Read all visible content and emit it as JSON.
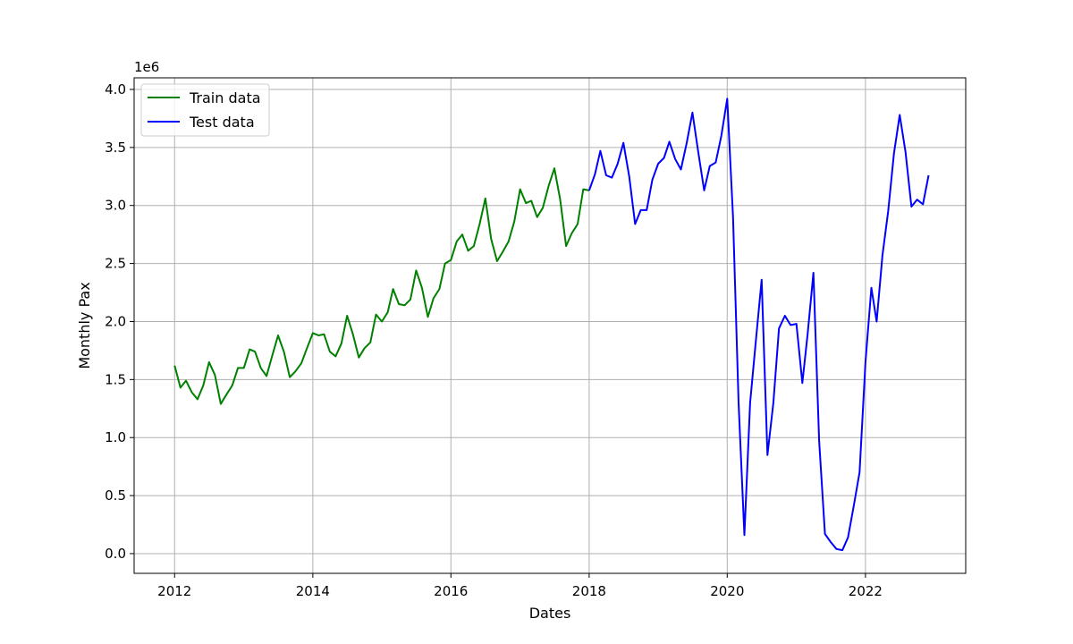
{
  "chart_data": {
    "type": "line",
    "title": "",
    "xlabel": "Dates",
    "ylabel": "Monthly Pax",
    "y_offset_text": "1e6",
    "y_scale_factor": 1000000,
    "xlim": [
      "2011-06-01",
      "2023-06-15"
    ],
    "ylim": [
      -0.17,
      4.1
    ],
    "x_ticks": [
      {
        "date": "2012-01-01",
        "label": "2012"
      },
      {
        "date": "2014-01-01",
        "label": "2014"
      },
      {
        "date": "2016-01-01",
        "label": "2016"
      },
      {
        "date": "2018-01-01",
        "label": "2018"
      },
      {
        "date": "2020-01-01",
        "label": "2020"
      },
      {
        "date": "2022-01-01",
        "label": "2022"
      }
    ],
    "y_ticks": [
      {
        "value": 0.0,
        "label": "0.0"
      },
      {
        "value": 0.5,
        "label": "0.5"
      },
      {
        "value": 1.0,
        "label": "1.0"
      },
      {
        "value": 1.5,
        "label": "1.5"
      },
      {
        "value": 2.0,
        "label": "2.0"
      },
      {
        "value": 2.5,
        "label": "2.5"
      },
      {
        "value": 3.0,
        "label": "3.0"
      },
      {
        "value": 3.5,
        "label": "3.5"
      },
      {
        "value": 4.0,
        "label": "4.0"
      }
    ],
    "grid": true,
    "legend_position": "upper-left",
    "series": [
      {
        "name": "Train data",
        "color": "#008000",
        "x": [
          "2012-01",
          "2012-02",
          "2012-03",
          "2012-04",
          "2012-05",
          "2012-06",
          "2012-07",
          "2012-08",
          "2012-09",
          "2012-10",
          "2012-11",
          "2012-12",
          "2013-01",
          "2013-02",
          "2013-03",
          "2013-04",
          "2013-05",
          "2013-06",
          "2013-07",
          "2013-08",
          "2013-09",
          "2013-10",
          "2013-11",
          "2013-12",
          "2014-01",
          "2014-02",
          "2014-03",
          "2014-04",
          "2014-05",
          "2014-06",
          "2014-07",
          "2014-08",
          "2014-09",
          "2014-10",
          "2014-11",
          "2014-12",
          "2015-01",
          "2015-02",
          "2015-03",
          "2015-04",
          "2015-05",
          "2015-06",
          "2015-07",
          "2015-08",
          "2015-09",
          "2015-10",
          "2015-11",
          "2015-12",
          "2016-01",
          "2016-02",
          "2016-03",
          "2016-04",
          "2016-05",
          "2016-06",
          "2016-07",
          "2016-08",
          "2016-09",
          "2016-10",
          "2016-11",
          "2016-12",
          "2017-01",
          "2017-02",
          "2017-03",
          "2017-04",
          "2017-05",
          "2017-06",
          "2017-07",
          "2017-08",
          "2017-09",
          "2017-10",
          "2017-11",
          "2017-12",
          "2018-01"
        ],
        "values": [
          1.62,
          1.43,
          1.49,
          1.39,
          1.33,
          1.45,
          1.65,
          1.54,
          1.29,
          1.37,
          1.45,
          1.6,
          1.6,
          1.76,
          1.74,
          1.6,
          1.53,
          1.71,
          1.88,
          1.74,
          1.52,
          1.57,
          1.64,
          1.77,
          1.9,
          1.88,
          1.89,
          1.74,
          1.7,
          1.81,
          2.05,
          1.89,
          1.69,
          1.77,
          1.82,
          2.06,
          2.0,
          2.08,
          2.28,
          2.15,
          2.14,
          2.19,
          2.44,
          2.29,
          2.04,
          2.2,
          2.28,
          2.5,
          2.53,
          2.69,
          2.75,
          2.61,
          2.65,
          2.84,
          3.06,
          2.71,
          2.52,
          2.6,
          2.69,
          2.86,
          3.14,
          3.02,
          3.04,
          2.9,
          2.98,
          3.17,
          3.32,
          3.05,
          2.65,
          2.76,
          2.84,
          3.14,
          3.13
        ]
      },
      {
        "name": "Test data",
        "color": "#0000ff",
        "x": [
          "2018-01",
          "2018-02",
          "2018-03",
          "2018-04",
          "2018-05",
          "2018-06",
          "2018-07",
          "2018-08",
          "2018-09",
          "2018-10",
          "2018-11",
          "2018-12",
          "2019-01",
          "2019-02",
          "2019-03",
          "2019-04",
          "2019-05",
          "2019-06",
          "2019-07",
          "2019-08",
          "2019-09",
          "2019-10",
          "2019-11",
          "2019-12",
          "2020-01",
          "2020-02",
          "2020-03",
          "2020-04",
          "2020-05",
          "2020-06",
          "2020-07",
          "2020-08",
          "2020-09",
          "2020-10",
          "2020-11",
          "2020-12",
          "2021-01",
          "2021-02",
          "2021-03",
          "2021-04",
          "2021-05",
          "2021-06",
          "2021-07",
          "2021-08",
          "2021-09",
          "2021-10",
          "2021-11",
          "2021-12",
          "2022-01",
          "2022-02",
          "2022-03",
          "2022-04",
          "2022-05",
          "2022-06",
          "2022-07",
          "2022-08",
          "2022-09",
          "2022-10",
          "2022-11",
          "2022-12"
        ],
        "values": [
          3.13,
          3.27,
          3.47,
          3.26,
          3.24,
          3.36,
          3.54,
          3.25,
          2.84,
          2.96,
          2.96,
          3.22,
          3.36,
          3.41,
          3.55,
          3.4,
          3.31,
          3.54,
          3.8,
          3.46,
          3.13,
          3.34,
          3.37,
          3.6,
          3.92,
          2.9,
          1.3,
          0.16,
          1.3,
          1.84,
          2.36,
          0.85,
          1.3,
          1.94,
          2.05,
          1.97,
          1.98,
          1.47,
          1.89,
          2.42,
          0.97,
          0.17,
          0.1,
          0.04,
          0.03,
          0.14,
          0.42,
          0.7,
          1.65,
          2.29,
          2.0,
          2.57,
          2.95,
          3.45,
          3.78,
          3.46,
          2.99,
          3.05,
          3.01,
          3.26
        ]
      }
    ]
  }
}
